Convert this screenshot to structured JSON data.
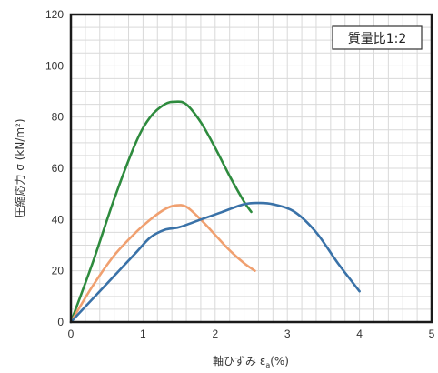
{
  "chart_data": {
    "type": "line",
    "annotation": "質量比1:2",
    "xlabel": "軸ひずみ ε",
    "xlabel_sub": "a",
    "xlabel_unit": "(%)",
    "ylabel": "圧縮応力 σ (kN/m²)",
    "xlim": [
      0,
      5
    ],
    "ylim": [
      0,
      120
    ],
    "x_ticks": [
      "0",
      "1",
      "2",
      "3",
      "4",
      "5"
    ],
    "y_ticks": [
      "0",
      "20",
      "40",
      "60",
      "80",
      "100",
      "120"
    ],
    "grid": true,
    "series": [
      {
        "color": "#2e8b3e",
        "x": [
          0,
          0.3,
          0.6,
          0.9,
          1.1,
          1.3,
          1.45,
          1.6,
          1.8,
          2.0,
          2.2,
          2.4,
          2.5
        ],
        "y": [
          0,
          23,
          48,
          70,
          80,
          85,
          86,
          85,
          78,
          68,
          57,
          47,
          43
        ]
      },
      {
        "color": "#f0a070",
        "x": [
          0,
          0.3,
          0.6,
          0.9,
          1.1,
          1.3,
          1.45,
          1.6,
          1.8,
          2.0,
          2.2,
          2.4,
          2.55
        ],
        "y": [
          0,
          14,
          26,
          35,
          40,
          44,
          45.5,
          45,
          40,
          34,
          28,
          23,
          20
        ]
      },
      {
        "color": "#3a72a8",
        "x": [
          0,
          0.3,
          0.6,
          0.9,
          1.1,
          1.3,
          1.5,
          1.8,
          2.1,
          2.4,
          2.6,
          2.8,
          3.1,
          3.4,
          3.7,
          4.0
        ],
        "y": [
          0,
          9,
          18,
          27,
          33,
          36,
          37,
          40,
          43,
          46,
          46.5,
          46,
          43,
          35,
          23,
          12
        ]
      }
    ]
  }
}
